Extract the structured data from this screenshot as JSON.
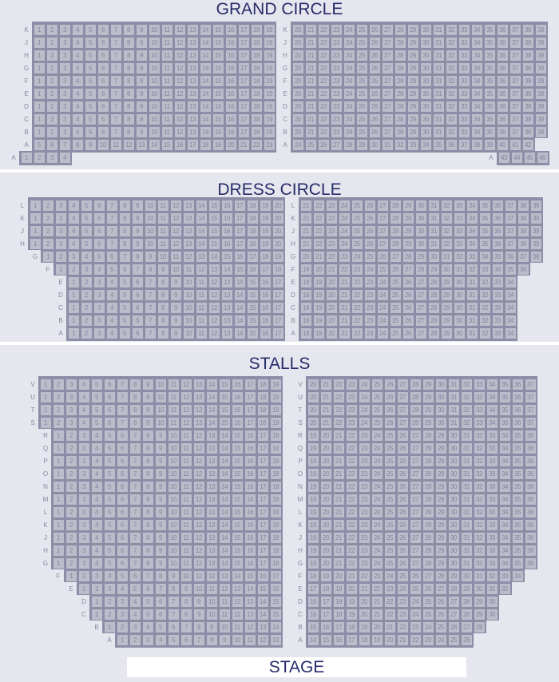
{
  "colors": {
    "background": "#e6e6ee",
    "block": "#8d8da8",
    "seat": "#bcbccb",
    "seat_text": "#8787a2",
    "title": "#262b6a"
  },
  "stage_label": "STAGE",
  "sections": [
    {
      "title": "GRAND CIRCLE",
      "rows": [
        {
          "row": "K",
          "left": [
            1,
            19
          ],
          "right": [
            20,
            39
          ]
        },
        {
          "row": "J",
          "left": [
            1,
            19
          ],
          "right": [
            20,
            39
          ]
        },
        {
          "row": "H",
          "left": [
            1,
            19
          ],
          "right": [
            20,
            39
          ]
        },
        {
          "row": "G",
          "left": [
            1,
            19
          ],
          "right": [
            20,
            39
          ]
        },
        {
          "row": "F",
          "left": [
            1,
            19
          ],
          "right": [
            20,
            39
          ]
        },
        {
          "row": "E",
          "left": [
            1,
            19
          ],
          "right": [
            20,
            39
          ]
        },
        {
          "row": "D",
          "left": [
            1,
            19
          ],
          "right": [
            20,
            39
          ]
        },
        {
          "row": "C",
          "left": [
            1,
            19
          ],
          "right": [
            20,
            39
          ]
        },
        {
          "row": "B",
          "left": [
            1,
            19
          ],
          "right": [
            20,
            39
          ]
        },
        {
          "row": "A",
          "left": [
            5,
            23
          ],
          "right": [
            24,
            42
          ]
        }
      ],
      "extra_row": {
        "row": "A",
        "left": [
          1,
          4
        ],
        "right": [
          43,
          46
        ]
      }
    },
    {
      "title": "DRESS CIRCLE",
      "rows": [
        {
          "row": "L",
          "left": [
            1,
            20
          ],
          "right": [
            21,
            39
          ]
        },
        {
          "row": "K",
          "left": [
            1,
            20
          ],
          "right": [
            21,
            39
          ]
        },
        {
          "row": "J",
          "left": [
            1,
            20
          ],
          "right": [
            21,
            39
          ]
        },
        {
          "row": "H",
          "left": [
            1,
            20
          ],
          "right": [
            21,
            39
          ]
        },
        {
          "row": "G",
          "left": [
            1,
            19
          ],
          "right": [
            20,
            38
          ]
        },
        {
          "row": "F",
          "left": [
            1,
            18
          ],
          "right": [
            19,
            36
          ]
        },
        {
          "row": "E",
          "left": [
            1,
            17
          ],
          "right": [
            18,
            34
          ]
        },
        {
          "row": "D",
          "left": [
            1,
            17
          ],
          "right": [
            18,
            34
          ]
        },
        {
          "row": "C",
          "left": [
            1,
            17
          ],
          "right": [
            18,
            34
          ]
        },
        {
          "row": "B",
          "left": [
            1,
            17
          ],
          "right": [
            18,
            34
          ]
        },
        {
          "row": "A",
          "left": [
            1,
            17
          ],
          "right": [
            18,
            34
          ]
        }
      ]
    },
    {
      "title": "STALLS",
      "rows": [
        {
          "row": "V",
          "left": [
            1,
            19
          ],
          "right": [
            20,
            37
          ]
        },
        {
          "row": "U",
          "left": [
            1,
            19
          ],
          "right": [
            20,
            37
          ]
        },
        {
          "row": "T",
          "left": [
            1,
            19
          ],
          "right": [
            20,
            37
          ]
        },
        {
          "row": "S",
          "left": [
            1,
            19
          ],
          "right": [
            20,
            37
          ]
        },
        {
          "row": "R",
          "left": [
            1,
            18
          ],
          "right": [
            19,
            36
          ]
        },
        {
          "row": "Q",
          "left": [
            1,
            18
          ],
          "right": [
            19,
            36
          ]
        },
        {
          "row": "P",
          "left": [
            1,
            18
          ],
          "right": [
            19,
            36
          ]
        },
        {
          "row": "O",
          "left": [
            1,
            18
          ],
          "right": [
            19,
            36
          ]
        },
        {
          "row": "N",
          "left": [
            1,
            18
          ],
          "right": [
            19,
            36
          ]
        },
        {
          "row": "M",
          "left": [
            1,
            18
          ],
          "right": [
            19,
            36
          ]
        },
        {
          "row": "L",
          "left": [
            1,
            18
          ],
          "right": [
            19,
            36
          ]
        },
        {
          "row": "K",
          "left": [
            1,
            18
          ],
          "right": [
            19,
            36
          ]
        },
        {
          "row": "J",
          "left": [
            1,
            18
          ],
          "right": [
            19,
            36
          ]
        },
        {
          "row": "H",
          "left": [
            1,
            18
          ],
          "right": [
            19,
            36
          ]
        },
        {
          "row": "G",
          "left": [
            1,
            18
          ],
          "right": [
            19,
            36
          ]
        },
        {
          "row": "F",
          "left": [
            1,
            17
          ],
          "right": [
            18,
            34
          ]
        },
        {
          "row": "E",
          "left": [
            1,
            16
          ],
          "right": [
            17,
            32
          ]
        },
        {
          "row": "D",
          "left": [
            1,
            15
          ],
          "right": [
            16,
            30
          ]
        },
        {
          "row": "C",
          "left": [
            1,
            15
          ],
          "right": [
            16,
            30
          ]
        },
        {
          "row": "B",
          "left": [
            1,
            14
          ],
          "right": [
            15,
            28
          ]
        },
        {
          "row": "A",
          "left": [
            1,
            13
          ],
          "right": [
            14,
            26
          ]
        }
      ]
    }
  ]
}
